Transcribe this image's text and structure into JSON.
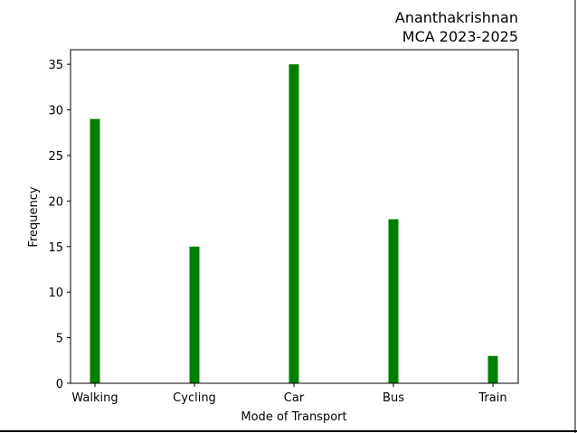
{
  "chart_data": {
    "type": "bar",
    "title_lines": [
      "Ananthakrishnan",
      "MCA 2023-2025"
    ],
    "xlabel": "Mode of Transport",
    "ylabel": "Frequency",
    "categories": [
      "Walking",
      "Cycling",
      "Car",
      "Bus",
      "Train"
    ],
    "values": [
      29,
      15,
      35,
      18,
      3
    ],
    "ylim": [
      0,
      36.6
    ],
    "yticks": [
      0,
      5,
      10,
      15,
      20,
      25,
      30,
      35
    ],
    "bar_color": "#008000",
    "grid": false,
    "legend": "none"
  }
}
